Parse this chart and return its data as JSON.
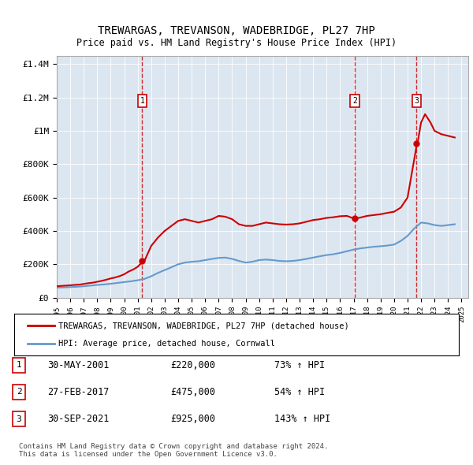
{
  "title": "TREWARGAS, TREVANSON, WADEBRIDGE, PL27 7HP",
  "subtitle": "Price paid vs. HM Land Registry's House Price Index (HPI)",
  "background_color": "#ffffff",
  "plot_bg_color": "#dce6f0",
  "ylim": [
    0,
    1450000
  ],
  "yticks": [
    0,
    200000,
    400000,
    600000,
    800000,
    1000000,
    1200000,
    1400000
  ],
  "ytick_labels": [
    "£0",
    "£200K",
    "£400K",
    "£600K",
    "£800K",
    "£1M",
    "£1.2M",
    "£1.4M"
  ],
  "sale_points": [
    {
      "date": "2001-05-30",
      "price": 220000,
      "label": "1",
      "pct": "73%",
      "date_str": "30-MAY-2001"
    },
    {
      "date": "2017-02-27",
      "price": 475000,
      "label": "2",
      "pct": "54%",
      "date_str": "27-FEB-2017"
    },
    {
      "date": "2021-09-30",
      "price": 925000,
      "label": "3",
      "pct": "143%",
      "date_str": "30-SEP-2021"
    }
  ],
  "hpi_color": "#6699cc",
  "price_color": "#cc0000",
  "dashed_color": "#cc0000",
  "legend_label_property": "TREWARGAS, TREVANSON, WADEBRIDGE, PL27 7HP (detached house)",
  "legend_label_hpi": "HPI: Average price, detached house, Cornwall",
  "footer": "Contains HM Land Registry data © Crown copyright and database right 2024.\nThis data is licensed under the Open Government Licence v3.0.",
  "hpi_data": {
    "years": [
      1995.0,
      1995.5,
      1996.0,
      1996.5,
      1997.0,
      1997.5,
      1998.0,
      1998.5,
      1999.0,
      1999.5,
      2000.0,
      2000.5,
      2001.0,
      2001.5,
      2002.0,
      2002.5,
      2003.0,
      2003.5,
      2004.0,
      2004.5,
      2005.0,
      2005.5,
      2006.0,
      2006.5,
      2007.0,
      2007.5,
      2008.0,
      2008.5,
      2009.0,
      2009.5,
      2010.0,
      2010.5,
      2011.0,
      2011.5,
      2012.0,
      2012.5,
      2013.0,
      2013.5,
      2014.0,
      2014.5,
      2015.0,
      2015.5,
      2016.0,
      2016.5,
      2017.0,
      2017.5,
      2018.0,
      2018.5,
      2019.0,
      2019.5,
      2020.0,
      2020.5,
      2021.0,
      2021.5,
      2022.0,
      2022.5,
      2023.0,
      2023.5,
      2024.0,
      2024.5
    ],
    "values": [
      60000,
      61000,
      63000,
      65000,
      68000,
      72000,
      76000,
      79000,
      83000,
      88000,
      93000,
      98000,
      104000,
      112000,
      128000,
      148000,
      165000,
      182000,
      200000,
      210000,
      215000,
      218000,
      225000,
      232000,
      238000,
      240000,
      232000,
      220000,
      210000,
      215000,
      225000,
      228000,
      225000,
      220000,
      218000,
      220000,
      225000,
      232000,
      240000,
      248000,
      255000,
      260000,
      268000,
      278000,
      288000,
      295000,
      300000,
      305000,
      308000,
      312000,
      318000,
      340000,
      370000,
      415000,
      450000,
      445000,
      435000,
      430000,
      435000,
      440000
    ]
  },
  "price_data": {
    "years": [
      1995.0,
      1995.3,
      1995.7,
      1996.0,
      1996.3,
      1996.7,
      1997.0,
      1997.3,
      1997.7,
      1998.0,
      1998.3,
      1998.7,
      1999.0,
      1999.3,
      1999.7,
      2000.0,
      2000.3,
      2000.7,
      2001.0,
      2001.4,
      2001.5,
      2002.0,
      2002.5,
      2003.0,
      2003.5,
      2004.0,
      2004.5,
      2005.0,
      2005.5,
      2006.0,
      2006.5,
      2007.0,
      2007.5,
      2008.0,
      2008.5,
      2009.0,
      2009.5,
      2010.0,
      2010.5,
      2011.0,
      2011.5,
      2012.0,
      2012.5,
      2013.0,
      2013.5,
      2014.0,
      2014.5,
      2015.0,
      2015.5,
      2016.0,
      2016.5,
      2017.0,
      2017.2,
      2017.5,
      2018.0,
      2018.5,
      2019.0,
      2019.5,
      2020.0,
      2020.5,
      2021.0,
      2021.7,
      2021.75,
      2022.0,
      2022.3,
      2022.7,
      2023.0,
      2023.5,
      2024.0,
      2024.5
    ],
    "values": [
      68000,
      70000,
      72000,
      74000,
      76000,
      78000,
      82000,
      86000,
      90000,
      95000,
      100000,
      108000,
      115000,
      120000,
      130000,
      140000,
      155000,
      170000,
      185000,
      218000,
      220000,
      310000,
      360000,
      400000,
      430000,
      460000,
      470000,
      460000,
      450000,
      460000,
      470000,
      490000,
      485000,
      470000,
      440000,
      430000,
      430000,
      440000,
      450000,
      445000,
      440000,
      438000,
      440000,
      445000,
      455000,
      465000,
      470000,
      478000,
      482000,
      488000,
      490000,
      475000,
      475000,
      480000,
      490000,
      495000,
      500000,
      508000,
      515000,
      540000,
      600000,
      925000,
      930000,
      1050000,
      1100000,
      1050000,
      1000000,
      980000,
      970000,
      960000
    ]
  }
}
